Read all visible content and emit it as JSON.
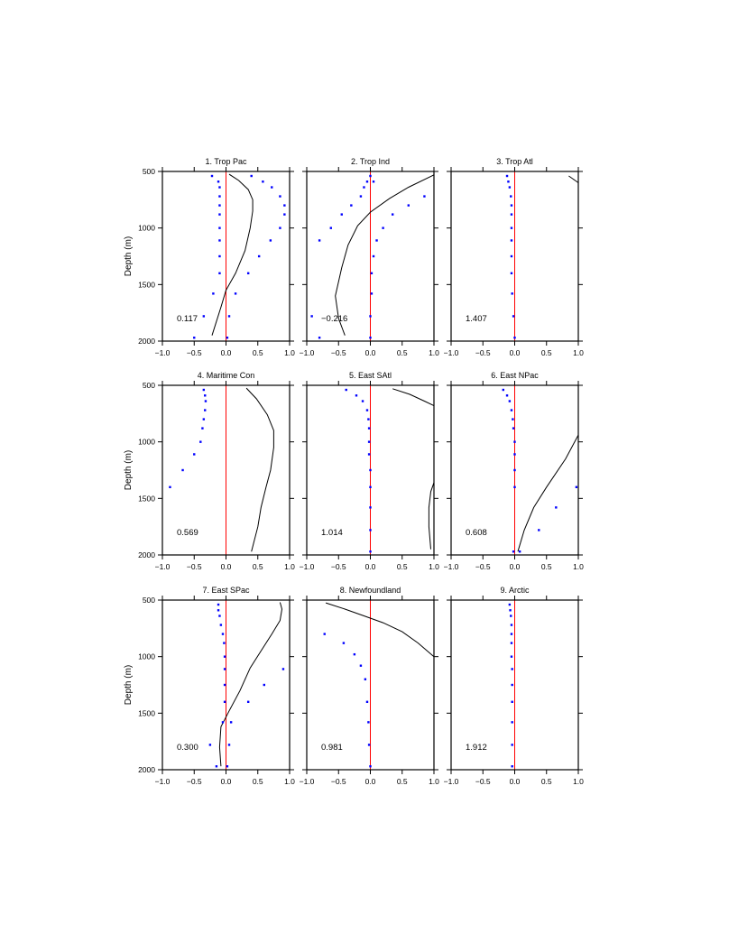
{
  "figure": {
    "ylabel": "Depth (m)"
  },
  "colors": {
    "axis": "#000000",
    "zero_line": "#ff0000",
    "dots": "#0000ff",
    "curve": "#000000"
  },
  "chart_data": [
    {
      "type": "line",
      "title": "1. Trop Pac",
      "annotation": "0.117",
      "xlim": [
        -1.0,
        1.0
      ],
      "ylim": [
        2000,
        500
      ],
      "xticks": [
        "−1.0",
        "−0.5",
        "0.0",
        "0.5",
        "1.0"
      ],
      "yticks": [
        "500",
        "1000",
        "1500",
        "2000"
      ],
      "series": [
        {
          "kind": "line",
          "points": [
            [
              0.05,
              525
            ],
            [
              0.2,
              580
            ],
            [
              0.35,
              660
            ],
            [
              0.42,
              750
            ],
            [
              0.42,
              850
            ],
            [
              0.38,
              1000
            ],
            [
              0.3,
              1200
            ],
            [
              0.15,
              1400
            ],
            [
              0.0,
              1550
            ],
            [
              -0.08,
              1700
            ],
            [
              -0.22,
              1950
            ]
          ]
        },
        {
          "kind": "dots",
          "points": [
            [
              -0.22,
              540
            ],
            [
              0.4,
              540
            ],
            [
              -0.12,
              590
            ],
            [
              0.58,
              590
            ],
            [
              -0.1,
              640
            ],
            [
              0.72,
              640
            ],
            [
              -0.1,
              720
            ],
            [
              0.85,
              720
            ],
            [
              -0.1,
              800
            ],
            [
              0.92,
              800
            ],
            [
              -0.1,
              880
            ],
            [
              0.92,
              880
            ],
            [
              -0.1,
              1000
            ],
            [
              0.85,
              1000
            ],
            [
              -0.1,
              1110
            ],
            [
              0.7,
              1110
            ],
            [
              -0.1,
              1250
            ],
            [
              0.52,
              1250
            ],
            [
              -0.1,
              1400
            ],
            [
              0.35,
              1400
            ],
            [
              -0.2,
              1580
            ],
            [
              0.15,
              1580
            ],
            [
              -0.35,
              1780
            ],
            [
              0.05,
              1780
            ],
            [
              -0.5,
              1970
            ],
            [
              0.02,
              1970
            ]
          ]
        }
      ]
    },
    {
      "type": "line",
      "title": "2. Trop Ind",
      "annotation": "−0.216",
      "xlim": [
        -1.0,
        1.0
      ],
      "ylim": [
        2000,
        500
      ],
      "xticks": [
        "−1.0",
        "−0.5",
        "0.0",
        "0.5",
        "1.0"
      ],
      "yticks": [
        "500",
        "1000",
        "1500",
        "2000"
      ],
      "series": [
        {
          "kind": "line",
          "points": [
            [
              1.0,
              530
            ],
            [
              0.6,
              640
            ],
            [
              0.3,
              740
            ],
            [
              0.0,
              860
            ],
            [
              -0.2,
              980
            ],
            [
              -0.35,
              1150
            ],
            [
              -0.45,
              1350
            ],
            [
              -0.55,
              1600
            ],
            [
              -0.5,
              1800
            ],
            [
              -0.4,
              1950
            ]
          ]
        },
        {
          "kind": "dots",
          "points": [
            [
              0.0,
              540
            ],
            [
              -0.05,
              590
            ],
            [
              0.05,
              590
            ],
            [
              -0.1,
              640
            ],
            [
              -0.15,
              720
            ],
            [
              0.85,
              720
            ],
            [
              -0.3,
              800
            ],
            [
              0.6,
              800
            ],
            [
              -0.45,
              880
            ],
            [
              0.35,
              880
            ],
            [
              -0.62,
              1000
            ],
            [
              0.2,
              1000
            ],
            [
              -0.8,
              1110
            ],
            [
              0.1,
              1110
            ],
            [
              0.05,
              1250
            ],
            [
              0.02,
              1400
            ],
            [
              0.02,
              1580
            ],
            [
              -0.92,
              1780
            ],
            [
              0.0,
              1780
            ],
            [
              -0.8,
              1970
            ],
            [
              0.0,
              1970
            ]
          ]
        }
      ]
    },
    {
      "type": "line",
      "title": "3. Trop Atl",
      "annotation": "1.407",
      "xlim": [
        -1.0,
        1.0
      ],
      "ylim": [
        2000,
        500
      ],
      "xticks": [
        "−1.0",
        "−0.5",
        "0.0",
        "0.5",
        "1.0"
      ],
      "yticks": [
        "500",
        "1000",
        "1500",
        "2000"
      ],
      "series": [
        {
          "kind": "line",
          "points": [
            [
              0.85,
              540
            ],
            [
              0.95,
              580
            ],
            [
              1.0,
              600
            ]
          ]
        },
        {
          "kind": "dots",
          "points": [
            [
              -0.12,
              540
            ],
            [
              -0.1,
              590
            ],
            [
              -0.08,
              640
            ],
            [
              -0.06,
              720
            ],
            [
              -0.05,
              800
            ],
            [
              -0.05,
              880
            ],
            [
              -0.05,
              1000
            ],
            [
              -0.05,
              1110
            ],
            [
              -0.05,
              1250
            ],
            [
              -0.05,
              1400
            ],
            [
              -0.04,
              1580
            ],
            [
              -0.02,
              1780
            ],
            [
              0.0,
              1970
            ]
          ]
        }
      ]
    },
    {
      "type": "line",
      "title": "4. Maritime Con",
      "annotation": "0.569",
      "xlim": [
        -1.0,
        1.0
      ],
      "ylim": [
        2000,
        500
      ],
      "xticks": [
        "−1.0",
        "−0.5",
        "0.0",
        "0.5",
        "1.0"
      ],
      "yticks": [
        "500",
        "1000",
        "1500",
        "2000"
      ],
      "series": [
        {
          "kind": "line",
          "points": [
            [
              0.32,
              525
            ],
            [
              0.48,
              620
            ],
            [
              0.65,
              760
            ],
            [
              0.75,
              900
            ],
            [
              0.75,
              1050
            ],
            [
              0.7,
              1250
            ],
            [
              0.63,
              1400
            ],
            [
              0.55,
              1580
            ],
            [
              0.5,
              1750
            ],
            [
              0.4,
              1970
            ]
          ]
        },
        {
          "kind": "dots",
          "points": [
            [
              -0.35,
              540
            ],
            [
              -0.33,
              590
            ],
            [
              -0.32,
              640
            ],
            [
              -0.33,
              720
            ],
            [
              -0.35,
              800
            ],
            [
              -0.37,
              880
            ],
            [
              -0.4,
              1000
            ],
            [
              -0.5,
              1110
            ],
            [
              -0.68,
              1250
            ],
            [
              -0.88,
              1400
            ]
          ]
        }
      ]
    },
    {
      "type": "line",
      "title": "5. East SAtl",
      "annotation": "1.014",
      "xlim": [
        -1.0,
        1.0
      ],
      "ylim": [
        2000,
        500
      ],
      "xticks": [
        "−1.0",
        "−0.5",
        "0.0",
        "0.5",
        "1.0"
      ],
      "yticks": [
        "500",
        "1000",
        "1500",
        "2000"
      ],
      "series": [
        {
          "kind": "line",
          "points": [
            [
              0.35,
              530
            ],
            [
              0.62,
              580
            ],
            [
              0.85,
              640
            ],
            [
              1.0,
              680
            ]
          ]
        },
        {
          "kind": "line",
          "points": [
            [
              1.0,
              1360
            ],
            [
              0.95,
              1440
            ],
            [
              0.92,
              1580
            ],
            [
              0.92,
              1750
            ],
            [
              0.95,
              1950
            ]
          ]
        },
        {
          "kind": "dots",
          "points": [
            [
              -0.38,
              540
            ],
            [
              -0.22,
              590
            ],
            [
              -0.12,
              640
            ],
            [
              -0.05,
              720
            ],
            [
              -0.03,
              800
            ],
            [
              -0.02,
              880
            ],
            [
              -0.02,
              1000
            ],
            [
              -0.02,
              1110
            ],
            [
              0.0,
              1250
            ],
            [
              0.0,
              1400
            ],
            [
              0.0,
              1580
            ],
            [
              0.0,
              1780
            ],
            [
              0.0,
              1970
            ]
          ]
        }
      ]
    },
    {
      "type": "line",
      "title": "6. East NPac",
      "annotation": "0.608",
      "xlim": [
        -1.0,
        1.0
      ],
      "ylim": [
        2000,
        500
      ],
      "xticks": [
        "−1.0",
        "−0.5",
        "0.0",
        "0.5",
        "1.0"
      ],
      "yticks": [
        "500",
        "1000",
        "1500",
        "2000"
      ],
      "series": [
        {
          "kind": "line",
          "points": [
            [
              1.0,
              940
            ],
            [
              0.8,
              1150
            ],
            [
              0.5,
              1400
            ],
            [
              0.3,
              1580
            ],
            [
              0.15,
              1780
            ],
            [
              0.05,
              1970
            ]
          ]
        },
        {
          "kind": "dots",
          "points": [
            [
              -0.18,
              540
            ],
            [
              -0.12,
              590
            ],
            [
              -0.08,
              640
            ],
            [
              -0.05,
              720
            ],
            [
              -0.03,
              800
            ],
            [
              -0.02,
              880
            ],
            [
              0.0,
              1000
            ],
            [
              0.0,
              1110
            ],
            [
              0.0,
              1250
            ],
            [
              0.0,
              1400
            ],
            [
              0.65,
              1580
            ],
            [
              0.38,
              1780
            ],
            [
              0.97,
              1400
            ],
            [
              -0.02,
              1970
            ],
            [
              0.08,
              1970
            ]
          ]
        }
      ]
    },
    {
      "type": "line",
      "title": "7. East SPac",
      "annotation": "0.300",
      "xlim": [
        -1.0,
        1.0
      ],
      "ylim": [
        2000,
        500
      ],
      "xticks": [
        "−1.0",
        "−0.5",
        "0.0",
        "0.5",
        "1.0"
      ],
      "yticks": [
        "500",
        "1000",
        "1500",
        "2000"
      ],
      "series": [
        {
          "kind": "line",
          "points": [
            [
              0.85,
              520
            ],
            [
              0.88,
              580
            ],
            [
              0.85,
              680
            ],
            [
              0.72,
              800
            ],
            [
              0.55,
              950
            ],
            [
              0.38,
              1100
            ],
            [
              0.22,
              1300
            ],
            [
              0.05,
              1480
            ],
            [
              -0.08,
              1620
            ],
            [
              -0.1,
              1800
            ],
            [
              -0.08,
              1970
            ]
          ]
        },
        {
          "kind": "dots",
          "points": [
            [
              -0.12,
              540
            ],
            [
              -0.12,
              590
            ],
            [
              -0.1,
              640
            ],
            [
              -0.08,
              720
            ],
            [
              -0.05,
              800
            ],
            [
              -0.03,
              880
            ],
            [
              -0.02,
              1000
            ],
            [
              -0.02,
              1110
            ],
            [
              0.9,
              1110
            ],
            [
              -0.02,
              1250
            ],
            [
              0.6,
              1250
            ],
            [
              -0.02,
              1400
            ],
            [
              0.35,
              1400
            ],
            [
              -0.05,
              1580
            ],
            [
              0.08,
              1580
            ],
            [
              -0.25,
              1780
            ],
            [
              0.05,
              1780
            ],
            [
              -0.15,
              1970
            ],
            [
              0.02,
              1970
            ]
          ]
        }
      ]
    },
    {
      "type": "line",
      "title": "8. Newfoundland",
      "annotation": "0.981",
      "xlim": [
        -1.0,
        1.0
      ],
      "ylim": [
        2000,
        500
      ],
      "xticks": [
        "−1.0",
        "−0.5",
        "0.0",
        "0.5",
        "1.0"
      ],
      "yticks": [
        "500",
        "1000",
        "1500",
        "2000"
      ],
      "series": [
        {
          "kind": "line",
          "points": [
            [
              -0.7,
              525
            ],
            [
              -0.4,
              580
            ],
            [
              -0.1,
              640
            ],
            [
              0.2,
              700
            ],
            [
              0.5,
              780
            ],
            [
              0.75,
              880
            ],
            [
              1.0,
              1000
            ]
          ]
        },
        {
          "kind": "dots",
          "points": [
            [
              -0.72,
              800
            ],
            [
              -0.42,
              880
            ],
            [
              -0.25,
              980
            ],
            [
              -0.15,
              1080
            ],
            [
              -0.08,
              1200
            ],
            [
              -0.05,
              1400
            ],
            [
              -0.03,
              1580
            ],
            [
              -0.02,
              1780
            ],
            [
              0.0,
              1970
            ]
          ]
        }
      ]
    },
    {
      "type": "line",
      "title": "9. Arctic",
      "annotation": "1.912",
      "xlim": [
        -1.0,
        1.0
      ],
      "ylim": [
        2000,
        500
      ],
      "xticks": [
        "−1.0",
        "−0.5",
        "0.0",
        "0.5",
        "1.0"
      ],
      "yticks": [
        "500",
        "1000",
        "1500",
        "2000"
      ],
      "series": [
        {
          "kind": "dots",
          "points": [
            [
              -0.08,
              540
            ],
            [
              -0.07,
              590
            ],
            [
              -0.06,
              640
            ],
            [
              -0.05,
              720
            ],
            [
              -0.05,
              800
            ],
            [
              -0.05,
              880
            ],
            [
              -0.05,
              1000
            ],
            [
              -0.04,
              1110
            ],
            [
              -0.04,
              1250
            ],
            [
              -0.04,
              1400
            ],
            [
              -0.04,
              1580
            ],
            [
              -0.04,
              1780
            ],
            [
              -0.04,
              1970
            ]
          ]
        }
      ]
    }
  ]
}
